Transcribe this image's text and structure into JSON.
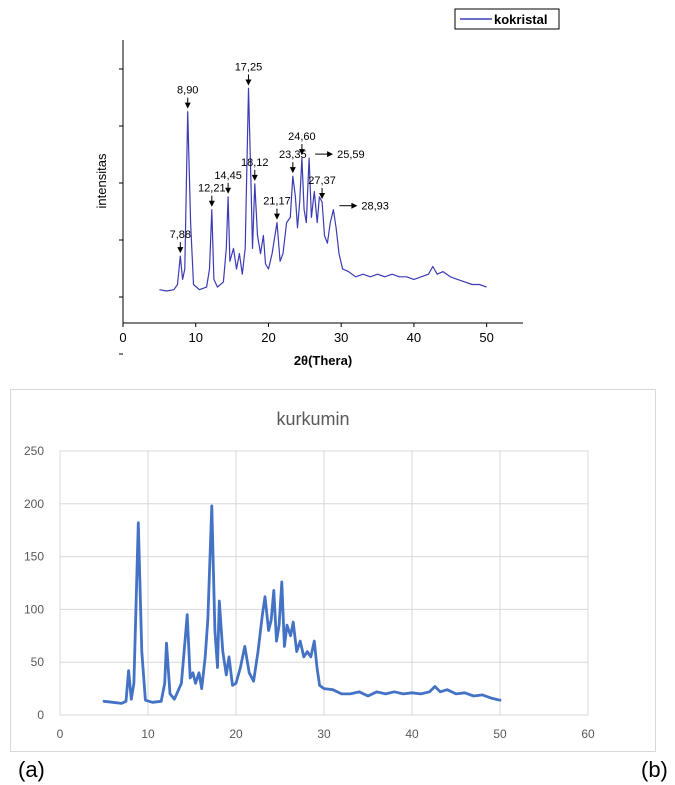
{
  "chart_data": [
    {
      "type": "line",
      "title": "",
      "xlabel": "2θ(Thera)",
      "ylabel": "intensitas",
      "xlim": [
        0,
        55
      ],
      "xticks": [
        0,
        10,
        20,
        30,
        40,
        50
      ],
      "ylim": [
        0,
        100
      ],
      "y_tick_labels_shown": false,
      "legend": "top-right",
      "color": "#3b3bb5",
      "series": [
        {
          "name": "kokristal",
          "x": [
            5,
            6,
            7,
            7.5,
            7.88,
            8.2,
            8.5,
            8.9,
            9.3,
            9.7,
            10.5,
            11.5,
            11.9,
            12.21,
            12.5,
            13,
            13.8,
            14.2,
            14.45,
            14.7,
            15.2,
            15.6,
            16,
            16.4,
            16.8,
            17.25,
            17.6,
            17.8,
            18.12,
            18.5,
            18.9,
            19.3,
            19.6,
            20,
            20.5,
            21.17,
            21.6,
            22,
            22.5,
            23,
            23.35,
            23.7,
            24,
            24.3,
            24.6,
            24.9,
            25.2,
            25.59,
            25.9,
            26.3,
            26.7,
            27,
            27.37,
            27.7,
            28.1,
            28.5,
            28.93,
            29.3,
            29.7,
            30.2,
            31,
            32,
            33,
            34,
            35,
            36,
            37,
            38,
            39,
            40,
            41,
            42,
            42.6,
            43.2,
            44,
            45,
            46,
            47,
            48,
            49,
            50
          ],
          "values": [
            4,
            3.5,
            4,
            6,
            17,
            8,
            12,
            73,
            30,
            6,
            4,
            5,
            12,
            35,
            8,
            5,
            7,
            20,
            40,
            15,
            20,
            12,
            18,
            10,
            20,
            82,
            45,
            20,
            45,
            25,
            18,
            25,
            14,
            12,
            18,
            30,
            15,
            18,
            30,
            32,
            48,
            40,
            28,
            38,
            55,
            35,
            30,
            55,
            32,
            42,
            30,
            40,
            38,
            25,
            22,
            30,
            35,
            28,
            18,
            12,
            11,
            9,
            10,
            9,
            10,
            9,
            10,
            9,
            9,
            8,
            9,
            10,
            13,
            10,
            11,
            9,
            8,
            7,
            6,
            6,
            5
          ]
        }
      ],
      "annotations": [
        {
          "label": "7,88",
          "x": 7.88,
          "y": 17
        },
        {
          "label": "8,90",
          "x": 8.9,
          "y": 73
        },
        {
          "label": "12,21",
          "x": 12.21,
          "y": 35
        },
        {
          "label": "14,45",
          "x": 14.45,
          "y": 40
        },
        {
          "label": "17,25",
          "x": 17.25,
          "y": 82
        },
        {
          "label": "18,12",
          "x": 18.12,
          "y": 45
        },
        {
          "label": "21,17",
          "x": 21.17,
          "y": 30
        },
        {
          "label": "23,35",
          "x": 23.35,
          "y": 48
        },
        {
          "label": "24,60",
          "x": 24.6,
          "y": 55
        },
        {
          "label": "25,59",
          "x": 25.59,
          "y": 55
        },
        {
          "label": "27,37",
          "x": 27.37,
          "y": 38
        },
        {
          "label": "28,93",
          "x": 28.93,
          "y": 35
        }
      ]
    },
    {
      "type": "line",
      "title": "kurkumin",
      "xlabel": "",
      "ylabel": "",
      "xlim": [
        0,
        60
      ],
      "xticks": [
        0,
        10,
        20,
        30,
        40,
        50,
        60
      ],
      "ylim": [
        0,
        250
      ],
      "yticks": [
        0,
        50,
        100,
        150,
        200,
        250
      ],
      "grid": true,
      "legend": "none",
      "color": "#4472c4",
      "series": [
        {
          "x": [
            5,
            6,
            7,
            7.5,
            7.8,
            8.1,
            8.4,
            8.9,
            9.3,
            9.7,
            10.5,
            11.5,
            11.9,
            12.1,
            12.5,
            13,
            13.8,
            14.2,
            14.45,
            14.8,
            15.1,
            15.4,
            15.8,
            16.1,
            16.5,
            16.8,
            17.25,
            17.6,
            17.9,
            18.1,
            18.5,
            18.9,
            19.2,
            19.6,
            20,
            20.5,
            21,
            21.5,
            22,
            22.5,
            23,
            23.3,
            23.7,
            24,
            24.3,
            24.6,
            24.9,
            25.2,
            25.5,
            25.8,
            26.2,
            26.5,
            26.9,
            27.3,
            27.7,
            28.1,
            28.5,
            28.9,
            29.2,
            29.5,
            30,
            31,
            32,
            33,
            34,
            35,
            36,
            37,
            38,
            39,
            40,
            41,
            42,
            42.6,
            43.2,
            44,
            45,
            46,
            47,
            48,
            49,
            50
          ],
          "values": [
            13,
            12,
            11,
            13,
            42,
            15,
            30,
            182,
            60,
            14,
            12,
            13,
            30,
            68,
            20,
            15,
            30,
            70,
            95,
            35,
            40,
            30,
            40,
            25,
            55,
            90,
            198,
            80,
            45,
            108,
            60,
            38,
            55,
            28,
            30,
            45,
            65,
            40,
            32,
            60,
            95,
            112,
            80,
            90,
            118,
            70,
            85,
            126,
            65,
            85,
            75,
            88,
            60,
            70,
            55,
            60,
            55,
            70,
            45,
            28,
            25,
            24,
            20,
            20,
            22,
            18,
            22,
            20,
            22,
            20,
            21,
            20,
            22,
            27,
            22,
            24,
            20,
            21,
            18,
            19,
            16,
            14
          ]
        }
      ]
    }
  ],
  "panel_labels": {
    "left": "(a)",
    "right": "(b)"
  }
}
